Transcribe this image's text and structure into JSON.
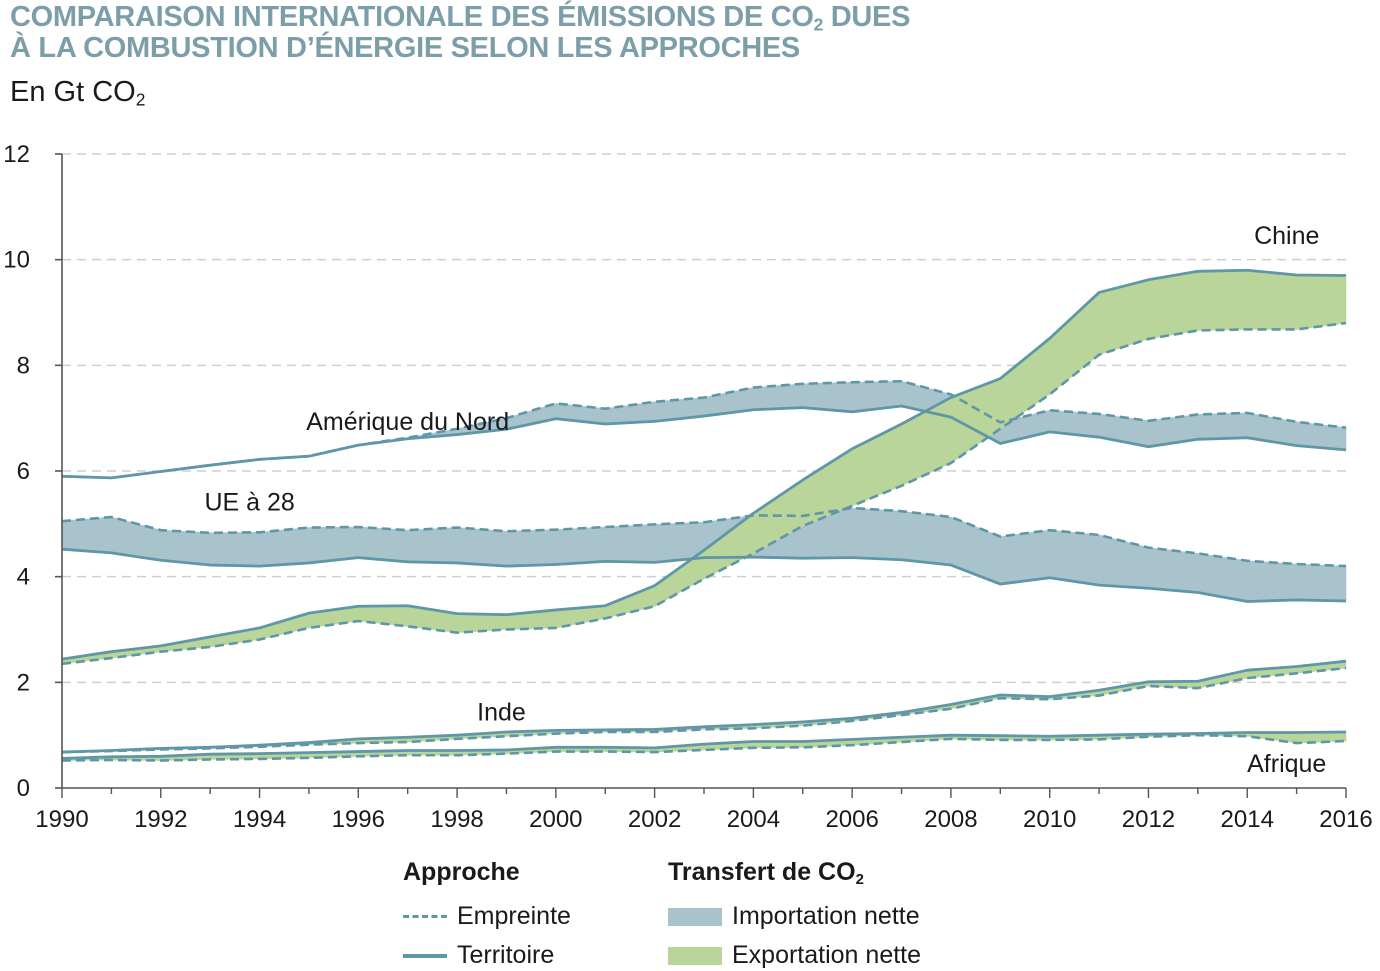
{
  "title_line1_main": "COMPARAISON INTERNATIONALE DES ÉMISSIONS DE CO",
  "title_line1_sub": "2",
  "title_line1_end": " DUES",
  "title_line2": "À LA COMBUSTION D’ÉNERGIE SELON LES APPROCHES",
  "unit_main": "En Gt CO",
  "unit_sub": "2",
  "colors": {
    "line": "#5f96a8",
    "import_fill": "#a9c3cd",
    "export_fill": "#b9d59a",
    "grid": "#cfcfcf",
    "title": "#7c9ea9"
  },
  "legend": {
    "approche_title": "Approche",
    "empreinte": "Empreinte",
    "territoire": "Territoire",
    "transfert_title_main": "Transfert de CO",
    "transfert_title_sub": "2",
    "importation": "Importation nette",
    "exportation": "Exportation nette"
  },
  "chart_data": {
    "type": "area",
    "xlim": [
      1990,
      2016
    ],
    "ylim": [
      0,
      12
    ],
    "yticks": [
      0,
      2,
      4,
      6,
      8,
      10,
      12
    ],
    "xticks": [
      1990,
      1992,
      1994,
      1996,
      1998,
      2000,
      2002,
      2004,
      2006,
      2008,
      2010,
      2012,
      2014,
      2016
    ],
    "grid": true,
    "x": [
      1990,
      1991,
      1992,
      1993,
      1994,
      1995,
      1996,
      1997,
      1998,
      1999,
      2000,
      2001,
      2002,
      2003,
      2004,
      2005,
      2006,
      2007,
      2008,
      2009,
      2010,
      2011,
      2012,
      2013,
      2014,
      2015,
      2016
    ],
    "regions": [
      {
        "label": "Amérique du Nord",
        "territoire": [
          5.9,
          5.87,
          5.99,
          6.11,
          6.22,
          6.28,
          6.49,
          6.61,
          6.69,
          6.79,
          6.99,
          6.89,
          6.94,
          7.04,
          7.16,
          7.2,
          7.12,
          7.23,
          7.02,
          6.52,
          6.74,
          6.64,
          6.46,
          6.6,
          6.63,
          6.48,
          6.4
        ],
        "empreinte": [
          5.9,
          5.87,
          5.99,
          6.11,
          6.22,
          6.28,
          6.49,
          6.63,
          6.8,
          7.0,
          7.28,
          7.18,
          7.31,
          7.39,
          7.58,
          7.65,
          7.68,
          7.7,
          7.45,
          6.92,
          7.15,
          7.08,
          6.95,
          7.07,
          7.1,
          6.93,
          6.82
        ]
      },
      {
        "label": "UE à 28",
        "territoire": [
          4.52,
          4.45,
          4.31,
          4.22,
          4.2,
          4.26,
          4.36,
          4.28,
          4.26,
          4.2,
          4.23,
          4.29,
          4.27,
          4.36,
          4.37,
          4.35,
          4.36,
          4.32,
          4.22,
          3.86,
          3.98,
          3.84,
          3.78,
          3.7,
          3.53,
          3.56,
          3.54
        ],
        "empreinte": [
          5.05,
          5.13,
          4.88,
          4.83,
          4.84,
          4.93,
          4.94,
          4.88,
          4.93,
          4.86,
          4.89,
          4.94,
          4.99,
          5.03,
          5.16,
          5.15,
          5.3,
          5.24,
          5.13,
          4.76,
          4.88,
          4.79,
          4.55,
          4.44,
          4.3,
          4.24,
          4.2
        ]
      },
      {
        "label": "Chine",
        "territoire": [
          2.44,
          2.58,
          2.69,
          2.86,
          3.03,
          3.31,
          3.44,
          3.45,
          3.3,
          3.28,
          3.37,
          3.45,
          3.83,
          4.5,
          5.2,
          5.83,
          6.42,
          6.89,
          7.39,
          7.75,
          8.51,
          9.38,
          9.62,
          9.78,
          9.8,
          9.71,
          9.7
        ],
        "empreinte": [
          2.35,
          2.46,
          2.58,
          2.67,
          2.81,
          3.03,
          3.16,
          3.06,
          2.94,
          3.0,
          3.03,
          3.21,
          3.44,
          3.96,
          4.44,
          4.96,
          5.34,
          5.72,
          6.15,
          6.8,
          7.45,
          8.2,
          8.5,
          8.66,
          8.68,
          8.68,
          8.8
        ]
      },
      {
        "label": "Inde",
        "territoire": [
          0.68,
          0.71,
          0.75,
          0.77,
          0.81,
          0.86,
          0.93,
          0.96,
          1.0,
          1.06,
          1.09,
          1.1,
          1.11,
          1.16,
          1.2,
          1.25,
          1.32,
          1.43,
          1.58,
          1.76,
          1.73,
          1.85,
          2.01,
          2.02,
          2.23,
          2.3,
          2.4
        ],
        "empreinte": [
          0.68,
          0.7,
          0.73,
          0.75,
          0.78,
          0.82,
          0.85,
          0.87,
          0.93,
          0.98,
          1.03,
          1.06,
          1.06,
          1.11,
          1.13,
          1.18,
          1.27,
          1.38,
          1.5,
          1.7,
          1.68,
          1.75,
          1.93,
          1.89,
          2.08,
          2.17,
          2.27
        ]
      },
      {
        "label": "Afrique",
        "territoire": [
          0.56,
          0.59,
          0.6,
          0.64,
          0.65,
          0.67,
          0.69,
          0.71,
          0.71,
          0.72,
          0.77,
          0.77,
          0.76,
          0.83,
          0.88,
          0.88,
          0.92,
          0.96,
          1.0,
          0.99,
          0.98,
          1.0,
          1.02,
          1.03,
          1.05,
          1.05,
          1.06
        ],
        "empreinte": [
          0.52,
          0.53,
          0.52,
          0.54,
          0.55,
          0.57,
          0.6,
          0.62,
          0.62,
          0.65,
          0.69,
          0.69,
          0.68,
          0.72,
          0.76,
          0.77,
          0.81,
          0.87,
          0.93,
          0.91,
          0.91,
          0.92,
          0.97,
          1.0,
          0.98,
          0.85,
          0.89
        ]
      }
    ]
  }
}
